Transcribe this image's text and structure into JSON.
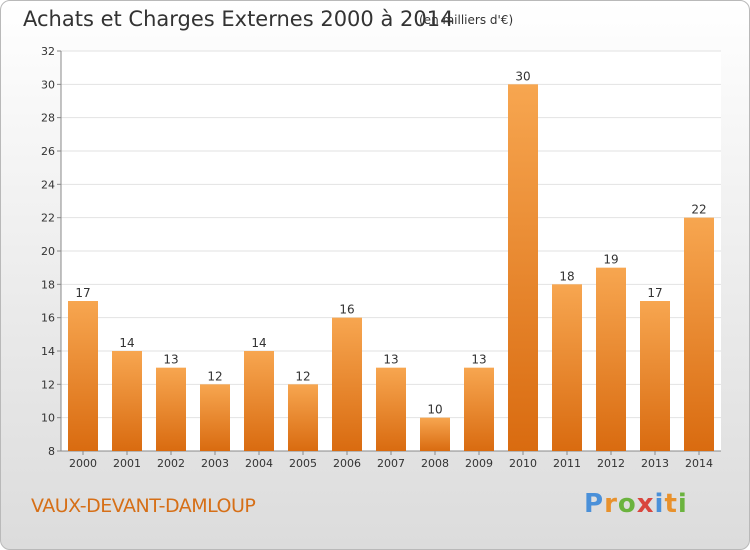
{
  "title": "Achats et Charges Externes 2000 à 2014",
  "subtitle": "(en milliers d'€)",
  "commune": "VAUX-DEVANT-DAMLOUP",
  "logo": {
    "letters": [
      "P",
      "r",
      "o",
      "x",
      "i",
      "t",
      "i"
    ]
  },
  "colors": {
    "bar_top": "#f7a650",
    "bar_bottom": "#d96b10",
    "label": "#d66f17"
  },
  "chart_data": {
    "type": "bar",
    "categories": [
      "2000",
      "2001",
      "2002",
      "2003",
      "2004",
      "2005",
      "2006",
      "2007",
      "2008",
      "2009",
      "2010",
      "2011",
      "2012",
      "2013",
      "2014"
    ],
    "values": [
      17,
      14,
      13,
      12,
      14,
      12,
      16,
      13,
      10,
      13,
      30,
      18,
      19,
      17,
      22
    ],
    "title": "Achats et Charges Externes 2000 à 2014",
    "ylim": [
      8,
      32
    ],
    "yticks": [
      8,
      10,
      12,
      14,
      16,
      18,
      20,
      22,
      24,
      26,
      28,
      30,
      32
    ],
    "grid": true
  }
}
